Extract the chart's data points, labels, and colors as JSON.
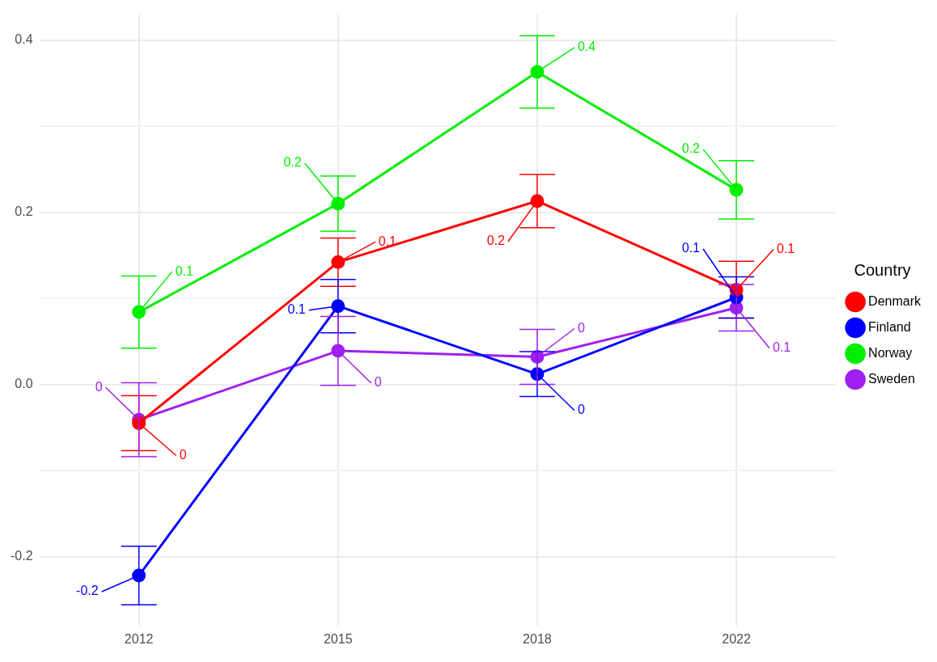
{
  "chart_data": {
    "type": "line",
    "categories": [
      "2012",
      "2015",
      "2018",
      "2022"
    ],
    "series": [
      {
        "name": "Denmark",
        "color": "#ff0000",
        "values": [
          -0.045,
          0.142,
          0.213,
          0.11
        ],
        "errors": [
          0.032,
          0.028,
          0.031,
          0.033
        ],
        "value_labels": [
          "0",
          "0.1",
          "0.2",
          "0.1"
        ]
      },
      {
        "name": "Finland",
        "color": "#0000ff",
        "values": [
          -0.222,
          0.091,
          0.012,
          0.101
        ],
        "errors": [
          0.034,
          0.031,
          0.026,
          0.024
        ],
        "value_labels": [
          "-0.2",
          "0.1",
          "0",
          "0.1"
        ]
      },
      {
        "name": "Norway",
        "color": "#00ee00",
        "values": [
          0.084,
          0.21,
          0.363,
          0.226
        ],
        "errors": [
          0.042,
          0.032,
          0.042,
          0.034
        ],
        "value_labels": [
          "0.1",
          "0.2",
          "0.4",
          "0.2"
        ]
      },
      {
        "name": "Sweden",
        "color": "#a020f0",
        "values": [
          -0.041,
          0.039,
          0.032,
          0.089
        ],
        "errors": [
          0.043,
          0.04,
          0.032,
          0.027
        ],
        "value_labels": [
          "0",
          "0",
          "0",
          "0.1"
        ]
      }
    ],
    "ylim": [
      -0.28,
      0.43
    ],
    "yticks": [
      {
        "value": -0.2,
        "label": "-0.2"
      },
      {
        "value": -0.1,
        "label": null
      },
      {
        "value": 0,
        "label": "0.0"
      },
      {
        "value": 0.1,
        "label": null
      },
      {
        "value": 0.2,
        "label": "0.2"
      },
      {
        "value": 0.3,
        "label": null
      },
      {
        "value": 0.4,
        "label": "0.4"
      }
    ],
    "grid": true,
    "legend": "right",
    "legend_title": "Country",
    "marker": "circle",
    "line_style": "solid"
  }
}
